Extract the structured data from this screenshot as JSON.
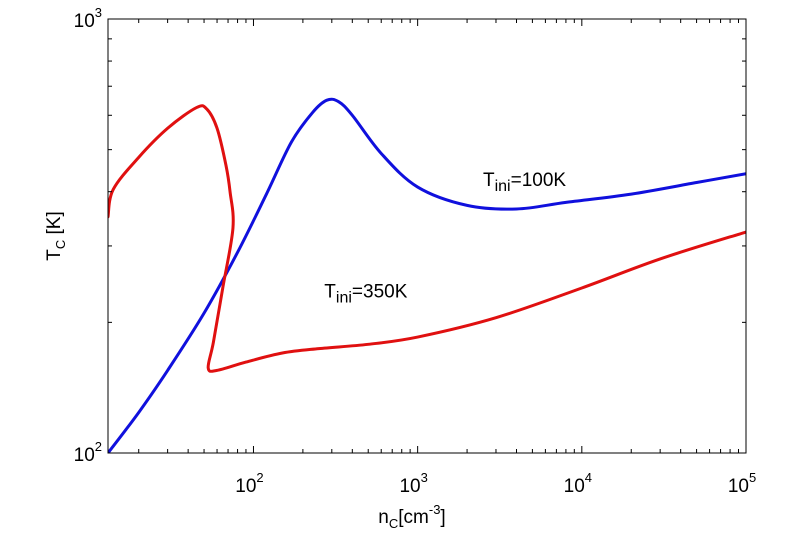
{
  "chart_data": {
    "type": "line",
    "x_scale": "log",
    "y_scale": "log",
    "xlim": [
      13,
      100000
    ],
    "ylim": [
      100,
      1000
    ],
    "grid": false,
    "legend": "none",
    "xlabel": {
      "base": "n",
      "sub": "C",
      "text": "[cm",
      "sup": "-3",
      "close": "]"
    },
    "ylabel": {
      "base": "T",
      "sub": "C",
      "text": " [K]"
    },
    "x_ticks": [
      {
        "value": 100,
        "base": "10",
        "exp": "2"
      },
      {
        "value": 1000,
        "base": "10",
        "exp": "3"
      },
      {
        "value": 10000,
        "base": "10",
        "exp": "4"
      },
      {
        "value": 100000,
        "base": "10",
        "exp": "5"
      }
    ],
    "y_ticks": [
      {
        "value": 100,
        "base": "10",
        "exp": "2"
      },
      {
        "value": 1000,
        "base": "10",
        "exp": "3"
      }
    ],
    "series": [
      {
        "color": "#1010dd",
        "x": [
          13,
          20,
          30,
          50,
          80,
          120,
          170,
          230,
          280,
          330,
          400,
          600,
          1000,
          2000,
          4000,
          8000,
          20000,
          50000,
          100000
        ],
        "y": [
          100,
          124,
          155,
          210,
          290,
          395,
          520,
          610,
          650,
          645,
          600,
          490,
          410,
          372,
          365,
          378,
          395,
          420,
          440
        ]
      },
      {
        "color": "#e01010",
        "x": [
          13,
          14,
          20,
          30,
          45,
          52,
          60,
          68,
          72,
          75,
          65,
          57,
          53,
          60,
          90,
          150,
          250,
          500,
          1000,
          3000,
          10000,
          30000,
          100000
        ],
        "y": [
          350,
          405,
          480,
          560,
          625,
          620,
          560,
          460,
          400,
          330,
          240,
          180,
          157,
          155,
          162,
          170,
          174,
          178,
          185,
          205,
          240,
          280,
          323
        ]
      }
    ],
    "annotations": [
      {
        "base": "T",
        "sub": "ini",
        "text": "=100K",
        "x": 2500,
        "y": 412
      },
      {
        "base": "T",
        "sub": "ini",
        "text": "=350K",
        "x": 270,
        "y": 228
      }
    ]
  }
}
